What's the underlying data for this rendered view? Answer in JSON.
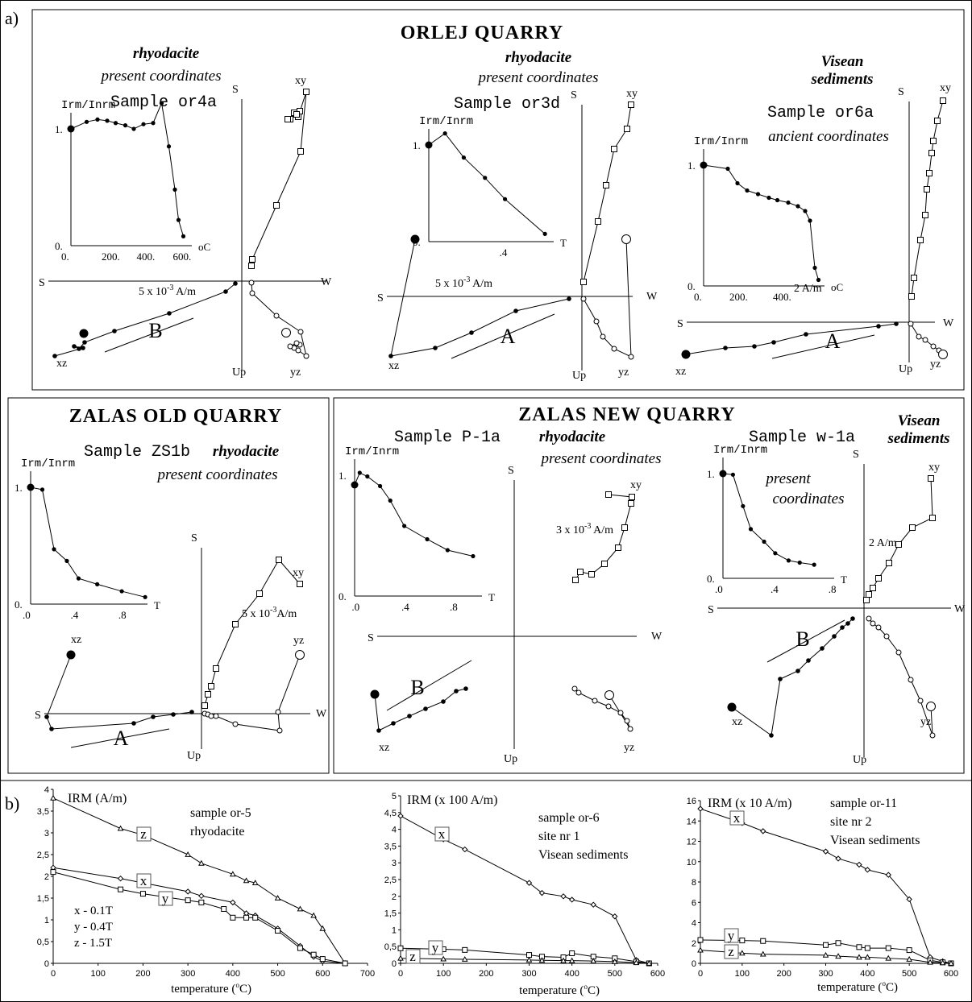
{
  "panel_labels": {
    "a": "a)",
    "b": "b)"
  },
  "sections": {
    "orlej": "ORLEJ QUARRY",
    "zalas_old": "ZALAS OLD QUARRY",
    "zalas_new": "ZALAS NEW QUARRY"
  },
  "samples": [
    {
      "rock": "rhyodacite",
      "coords": "present coordinates",
      "name": "Sample or4a",
      "scale": "5 x 10",
      "scale_exp": "-3",
      "scale_unit": " A/m",
      "component": "B",
      "inset": {
        "ylabel": "Irm/Inrm",
        "y_ticks": [
          "1.",
          "0."
        ],
        "x_ticks": [
          "0.",
          "200.",
          "400.",
          "600."
        ],
        "unit": "oC"
      }
    },
    {
      "rock": "rhyodacite",
      "coords": "present coordinates",
      "name": "Sample or3d",
      "scale": "5 x 10",
      "scale_exp": "-3",
      "scale_unit": " A/m",
      "component": "A",
      "inset": {
        "ylabel": "Irm/Inrm",
        "y_ticks": [
          "1.",
          "0."
        ],
        "x_ticks": [
          ".4"
        ],
        "unit": "T"
      }
    },
    {
      "rock": "Visean",
      "rock2": "sediments",
      "coords": "ancient coordinates",
      "name": "Sample or6a",
      "scale": "2 A/m",
      "component": "A",
      "inset": {
        "ylabel": "Irm/Inrm",
        "y_ticks": [
          "1.",
          "0."
        ],
        "x_ticks": [
          "0.",
          "200.",
          "400."
        ],
        "unit": "oC"
      }
    },
    {
      "rock": "rhyodacite",
      "coords": "present coordinates",
      "name": "Sample ZS1b",
      "scale": "5 x 10",
      "scale_exp": "-3",
      "scale_unit": "A/m",
      "component": "A",
      "inset": {
        "ylabel": "Irm/Inrm",
        "y_ticks": [
          "1.",
          "0."
        ],
        "x_ticks": [
          ".0",
          ".4",
          ".8"
        ],
        "unit": "T"
      }
    },
    {
      "rock": "rhyodacite",
      "coords": "present coordinates",
      "name": "Sample P-1a",
      "scale": "3 x 10",
      "scale_exp": "-3",
      "scale_unit": " A/m",
      "component": "B",
      "inset": {
        "ylabel": "Irm/Inrm",
        "y_ticks": [
          "1.",
          "0."
        ],
        "x_ticks": [
          ".0",
          ".4",
          ".8"
        ],
        "unit": "T"
      }
    },
    {
      "rock": "Visean",
      "rock2": "sediments",
      "coords": "present",
      "coords2": "coordinates",
      "name": "Sample w-1a",
      "scale": "2 A/m",
      "component": "B",
      "inset": {
        "ylabel": "Irm/Inrm",
        "y_ticks": [
          "1.",
          "0."
        ],
        "x_ticks": [
          ".0",
          ".4",
          ".8"
        ],
        "unit": "T"
      }
    }
  ],
  "axis_labels": {
    "S": "S",
    "W": "W",
    "Up": "Up",
    "xy": "xy",
    "xz": "xz",
    "yz": "yz"
  },
  "chart_data": [
    {
      "type": "line",
      "title": "",
      "ylabel": "IRM (A/m)",
      "xlabel": "temperature",
      "xlabel_unit": "C",
      "annotation": [
        "sample or-5",
        "rhyodacite"
      ],
      "legend_note": [
        "x - 0.1T",
        "y - 0.4T",
        "z - 1.5T"
      ],
      "xlim": [
        0,
        700
      ],
      "ylim": [
        0,
        4
      ],
      "x_ticks": [
        0,
        100,
        200,
        300,
        400,
        500,
        600,
        700
      ],
      "y_ticks": [
        "0",
        "0,5",
        "1",
        "1,5",
        "2",
        "2,5",
        "3",
        "3,5",
        "4"
      ],
      "series": [
        {
          "name": "z",
          "marker": "triangle",
          "x": [
            0,
            150,
            200,
            300,
            330,
            400,
            430,
            450,
            500,
            550,
            580,
            600,
            650
          ],
          "y": [
            3.8,
            3.1,
            2.95,
            2.5,
            2.3,
            2.05,
            1.9,
            1.85,
            1.5,
            1.25,
            1.1,
            0.8,
            0
          ]
        },
        {
          "name": "x",
          "marker": "diamond",
          "x": [
            0,
            150,
            200,
            300,
            330,
            400,
            430,
            450,
            500,
            550,
            580,
            600,
            650
          ],
          "y": [
            2.2,
            1.95,
            1.85,
            1.65,
            1.55,
            1.4,
            1.15,
            1.1,
            0.8,
            0.4,
            0.15,
            0.05,
            0
          ]
        },
        {
          "name": "y",
          "marker": "square",
          "x": [
            0,
            150,
            200,
            300,
            330,
            380,
            400,
            430,
            450,
            500,
            550,
            580,
            600,
            650
          ],
          "y": [
            2.1,
            1.7,
            1.6,
            1.45,
            1.4,
            1.25,
            1.05,
            1.05,
            1.05,
            0.75,
            0.35,
            0.2,
            0.1,
            0
          ]
        }
      ]
    },
    {
      "type": "line",
      "title": "",
      "ylabel": "IRM (x 100 A/m)",
      "xlabel": "temperature",
      "xlabel_unit": "C",
      "annotation": [
        "sample or-6",
        "site nr 1",
        "Visean sediments"
      ],
      "xlim": [
        0,
        600
      ],
      "ylim": [
        0,
        5
      ],
      "x_ticks": [
        0,
        100,
        200,
        300,
        400,
        500,
        600
      ],
      "y_ticks": [
        "0",
        "0,5",
        "1",
        "1,5",
        "2",
        "2,5",
        "3",
        "3,5",
        "4",
        "4,5",
        "5"
      ],
      "series": [
        {
          "name": "x",
          "marker": "diamond",
          "x": [
            0,
            100,
            150,
            300,
            330,
            380,
            400,
            450,
            500,
            550,
            580
          ],
          "y": [
            4.4,
            3.7,
            3.4,
            2.4,
            2.1,
            2.0,
            1.9,
            1.75,
            1.4,
            0.1,
            0
          ]
        },
        {
          "name": "y",
          "marker": "square",
          "x": [
            0,
            100,
            150,
            300,
            330,
            380,
            400,
            450,
            500,
            550,
            580
          ],
          "y": [
            0.45,
            0.42,
            0.4,
            0.25,
            0.2,
            0.18,
            0.3,
            0.2,
            0.15,
            0.05,
            0
          ]
        },
        {
          "name": "z",
          "marker": "triangle",
          "x": [
            0,
            100,
            150,
            300,
            330,
            380,
            400,
            450,
            500,
            550,
            580
          ],
          "y": [
            0.15,
            0.13,
            0.12,
            0.1,
            0.09,
            0.08,
            0.08,
            0.07,
            0.05,
            0.02,
            0
          ]
        }
      ]
    },
    {
      "type": "line",
      "title": "",
      "ylabel": "IRM (x 10 A/m)",
      "xlabel": "temperature",
      "xlabel_unit": "C",
      "annotation": [
        "sample or-11",
        "site nr 2",
        "Visean sediments"
      ],
      "xlim": [
        0,
        600
      ],
      "ylim": [
        0,
        16
      ],
      "x_ticks": [
        0,
        100,
        200,
        300,
        400,
        500,
        600
      ],
      "y_ticks": [
        "0",
        "2",
        "4",
        "6",
        "8",
        "10",
        "12",
        "14",
        "16"
      ],
      "series": [
        {
          "name": "x",
          "marker": "diamond",
          "x": [
            0,
            100,
            150,
            300,
            330,
            380,
            400,
            450,
            500,
            550,
            580,
            600
          ],
          "y": [
            15.2,
            13.8,
            13.0,
            11.0,
            10.3,
            9.7,
            9.2,
            8.7,
            6.3,
            0.6,
            0.2,
            0
          ]
        },
        {
          "name": "y",
          "marker": "square",
          "x": [
            0,
            100,
            150,
            300,
            330,
            380,
            400,
            450,
            500,
            550,
            580,
            600
          ],
          "y": [
            2.3,
            2.25,
            2.2,
            1.8,
            2.0,
            1.6,
            1.5,
            1.5,
            1.3,
            0.3,
            0.1,
            0
          ]
        },
        {
          "name": "z",
          "marker": "triangle",
          "x": [
            0,
            100,
            150,
            300,
            330,
            380,
            400,
            450,
            500,
            550,
            580,
            600
          ],
          "y": [
            1.3,
            1.0,
            0.9,
            0.8,
            0.7,
            0.6,
            0.6,
            0.5,
            0.4,
            0.1,
            0.05,
            0
          ]
        }
      ]
    }
  ]
}
